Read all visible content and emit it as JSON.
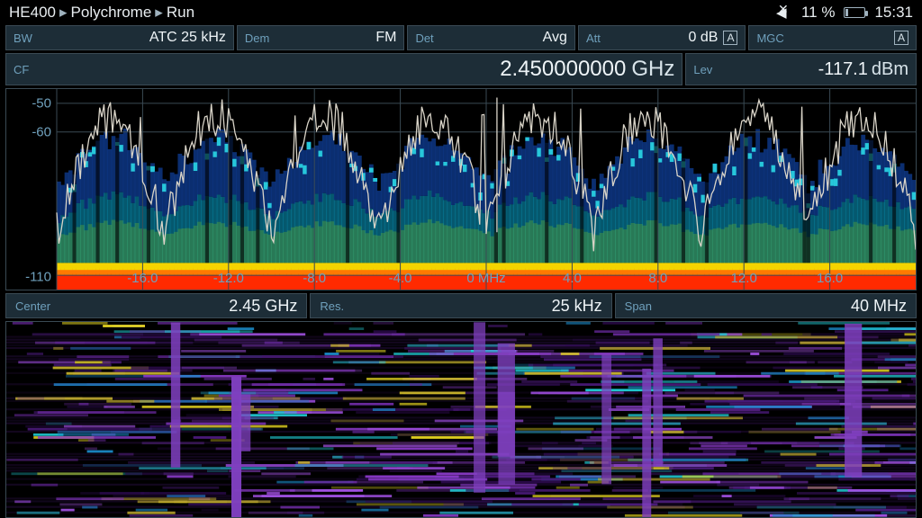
{
  "breadcrumb": {
    "a": "HE400",
    "b": "Polychrome",
    "c": "Run"
  },
  "status": {
    "battery_pct": "11 %",
    "clock": "15:31"
  },
  "row1": {
    "bw": {
      "label": "BW",
      "value": "ATC 25 kHz"
    },
    "dem": {
      "label": "Dem",
      "value": "FM"
    },
    "det": {
      "label": "Det",
      "value": "Avg"
    },
    "att": {
      "label": "Att",
      "value": "0 dB",
      "badge": "A"
    },
    "mgc": {
      "label": "MGC",
      "badge": "A"
    }
  },
  "row2": {
    "cf": {
      "label": "CF",
      "value": "2.450000000",
      "unit": "GHz"
    },
    "lev": {
      "label": "Lev",
      "value": "-117.1",
      "unit": "dBm"
    }
  },
  "spectrum": {
    "y_ticks": [
      -50,
      -60,
      -110
    ],
    "y_range": [
      -115,
      -45
    ],
    "x_ticks": [
      -16.0,
      -12.0,
      -8.0,
      -4.0,
      0,
      4.0,
      8.0,
      12.0,
      16.0
    ],
    "x_labels": [
      "-16.0",
      "-12.0",
      "-8.0",
      "-4.0",
      "0 MHz",
      "4.0",
      "8.0",
      "12.0",
      "16.0"
    ],
    "x_range": [
      -20.0,
      20.0
    ],
    "grid_color": "#3a4a54",
    "heatmap_colors": {
      "bg": "#000000",
      "low": "#0b1a40",
      "mid1": "#0e3a8c",
      "mid2": "#0aa0c8",
      "high": "#2ad8e6",
      "warm1": "#6ab82a",
      "warm2": "#f5d400",
      "hot1": "#ff7a00",
      "hot2": "#ff2a00"
    },
    "trace_color": "#d9d4c8",
    "seed": 7
  },
  "midrow": {
    "center": {
      "label": "Center",
      "value": "2.45 GHz"
    },
    "res": {
      "label": "Res.",
      "value": "25 kHz"
    },
    "span": {
      "label": "Span",
      "value": "40 MHz"
    }
  },
  "waterfall": {
    "bg": "#000000",
    "stripe_colors": [
      "#2a0a4a",
      "#4a1a7a",
      "#6a2aa0",
      "#8a3ac8",
      "#a050e0",
      "#1a8ac8",
      "#20c8d0",
      "#e0d020"
    ],
    "burst_color": "#8040c0",
    "rows": 70,
    "seed": 13
  }
}
